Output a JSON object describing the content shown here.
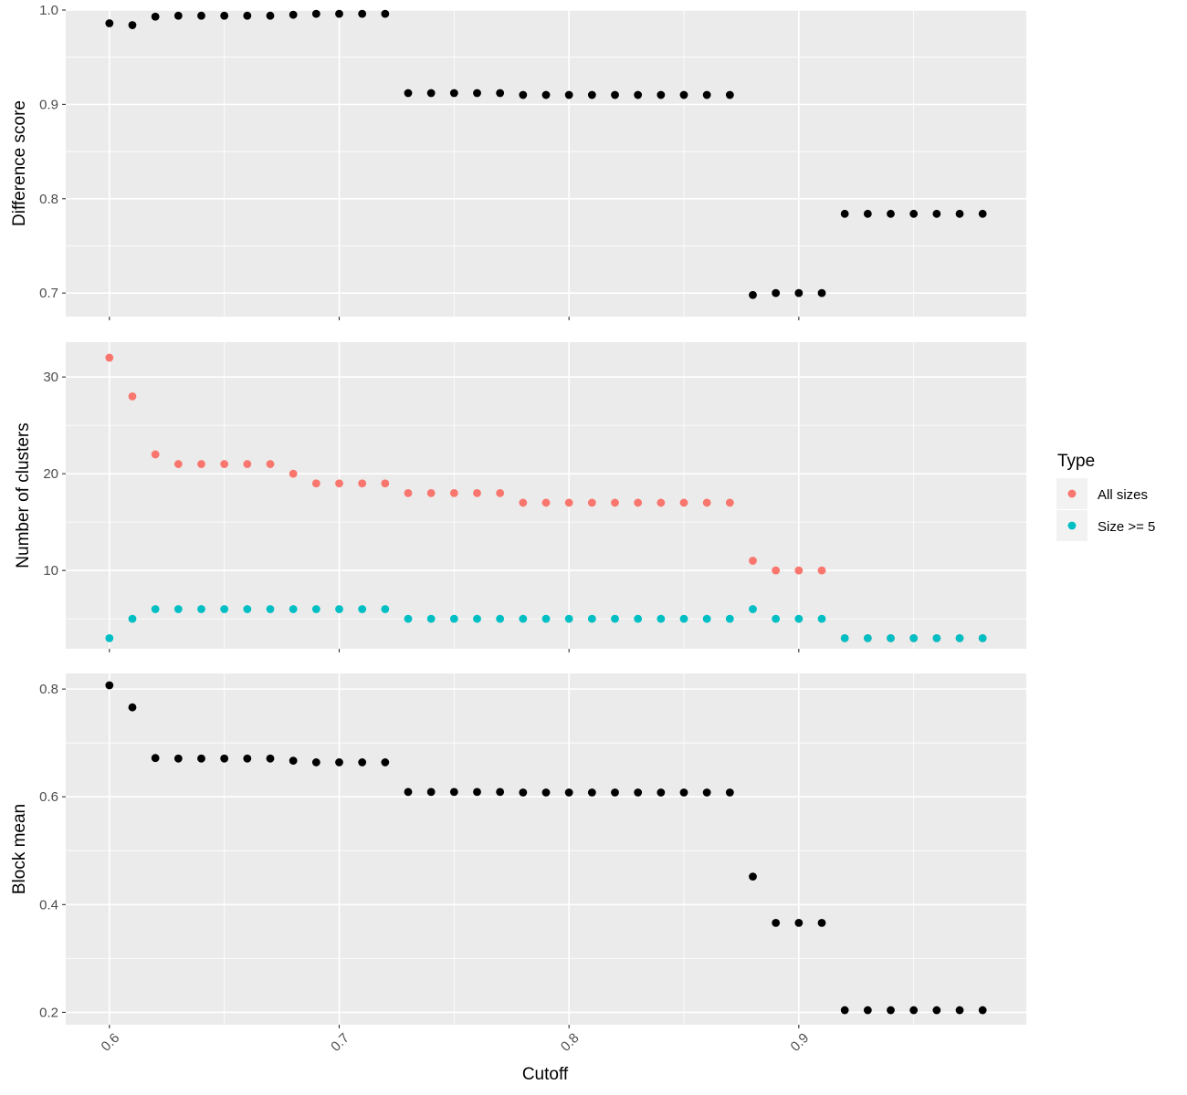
{
  "chart_data": [
    {
      "type": "scatter",
      "ylabel": "Difference score",
      "ylim": [
        0.675,
        1.0
      ],
      "yticks": [
        0.7,
        0.8,
        0.9,
        1.0
      ],
      "ytick_labels": [
        "0.7",
        "0.8",
        "0.9",
        "1.0"
      ],
      "x": [
        0.6,
        0.61,
        0.62,
        0.63,
        0.64,
        0.65,
        0.66,
        0.67,
        0.68,
        0.69,
        0.7,
        0.71,
        0.72,
        0.73,
        0.74,
        0.75,
        0.76,
        0.77,
        0.78,
        0.79,
        0.8,
        0.81,
        0.82,
        0.83,
        0.84,
        0.85,
        0.86,
        0.87,
        0.88,
        0.89,
        0.9,
        0.91,
        0.92,
        0.93,
        0.94,
        0.95,
        0.96,
        0.97,
        0.98
      ],
      "series": [
        {
          "color": "#000000",
          "values": [
            0.986,
            0.984,
            0.993,
            0.994,
            0.994,
            0.994,
            0.994,
            0.994,
            0.995,
            0.996,
            0.996,
            0.996,
            0.996,
            0.912,
            0.912,
            0.912,
            0.912,
            0.912,
            0.91,
            0.91,
            0.91,
            0.91,
            0.91,
            0.91,
            0.91,
            0.91,
            0.91,
            0.91,
            0.698,
            0.7,
            0.7,
            0.7,
            0.784,
            0.784,
            0.784,
            0.784,
            0.784,
            0.784,
            0.784
          ]
        }
      ]
    },
    {
      "type": "scatter",
      "ylabel": "Number of clusters",
      "ylim": [
        1.9,
        33.6
      ],
      "yticks": [
        10,
        20,
        30
      ],
      "ytick_labels": [
        "10",
        "20",
        "30"
      ],
      "x": [
        0.6,
        0.61,
        0.62,
        0.63,
        0.64,
        0.65,
        0.66,
        0.67,
        0.68,
        0.69,
        0.7,
        0.71,
        0.72,
        0.73,
        0.74,
        0.75,
        0.76,
        0.77,
        0.78,
        0.79,
        0.8,
        0.81,
        0.82,
        0.83,
        0.84,
        0.85,
        0.86,
        0.87,
        0.88,
        0.89,
        0.9,
        0.91,
        0.92,
        0.93,
        0.94,
        0.95,
        0.96,
        0.97,
        0.98
      ],
      "series": [
        {
          "name": "All sizes",
          "color": "#F8766D",
          "values": [
            32,
            28,
            22,
            21,
            21,
            21,
            21,
            21,
            20,
            19,
            19,
            19,
            19,
            18,
            18,
            18,
            18,
            18,
            17,
            17,
            17,
            17,
            17,
            17,
            17,
            17,
            17,
            17,
            11,
            10,
            10,
            10,
            3,
            3,
            3,
            3,
            3,
            3,
            3
          ]
        },
        {
          "name": "Size >= 5",
          "color": "#00BFC4",
          "values": [
            3,
            5,
            6,
            6,
            6,
            6,
            6,
            6,
            6,
            6,
            6,
            6,
            6,
            5,
            5,
            5,
            5,
            5,
            5,
            5,
            5,
            5,
            5,
            5,
            5,
            5,
            5,
            5,
            6,
            5,
            5,
            5,
            3,
            3,
            3,
            3,
            3,
            3,
            3
          ]
        }
      ]
    },
    {
      "type": "scatter",
      "ylabel": "Block mean",
      "xlabel": "Cutoff",
      "ylim": [
        0.177,
        0.829
      ],
      "yticks": [
        0.2,
        0.4,
        0.6,
        0.8
      ],
      "ytick_labels": [
        "0.2",
        "0.4",
        "0.6",
        "0.8"
      ],
      "xticks": [
        0.6,
        0.7,
        0.8,
        0.9
      ],
      "xtick_labels": [
        "0.6",
        "0.7",
        "0.8",
        "0.9"
      ],
      "x": [
        0.6,
        0.61,
        0.62,
        0.63,
        0.64,
        0.65,
        0.66,
        0.67,
        0.68,
        0.69,
        0.7,
        0.71,
        0.72,
        0.73,
        0.74,
        0.75,
        0.76,
        0.77,
        0.78,
        0.79,
        0.8,
        0.81,
        0.82,
        0.83,
        0.84,
        0.85,
        0.86,
        0.87,
        0.88,
        0.89,
        0.9,
        0.91,
        0.92,
        0.93,
        0.94,
        0.95,
        0.96,
        0.97,
        0.98
      ],
      "series": [
        {
          "color": "#000000",
          "values": [
            0.807,
            0.766,
            0.672,
            0.671,
            0.671,
            0.671,
            0.671,
            0.671,
            0.667,
            0.664,
            0.664,
            0.664,
            0.664,
            0.609,
            0.609,
            0.609,
            0.609,
            0.609,
            0.608,
            0.608,
            0.608,
            0.608,
            0.608,
            0.608,
            0.608,
            0.608,
            0.608,
            0.608,
            0.452,
            0.366,
            0.366,
            0.366,
            0.204,
            0.204,
            0.204,
            0.204,
            0.204,
            0.204,
            0.204
          ]
        }
      ]
    }
  ],
  "shared_x": {
    "label": "Cutoff",
    "xlim": [
      0.581,
      0.999
    ],
    "ticks": [
      0.6,
      0.7,
      0.8,
      0.9
    ],
    "tick_labels": [
      "0.6",
      "0.7",
      "0.8",
      "0.9"
    ],
    "tick_label_rotation_deg": -45
  },
  "legend": {
    "title": "Type",
    "position": "right",
    "entries": [
      {
        "label": "All sizes",
        "color": "#F8766D"
      },
      {
        "label": "Size >= 5",
        "color": "#00BFC4"
      }
    ]
  },
  "theme": {
    "panel_background": "#EBEBEB",
    "grid_color": "#FFFFFF",
    "grid": true
  }
}
